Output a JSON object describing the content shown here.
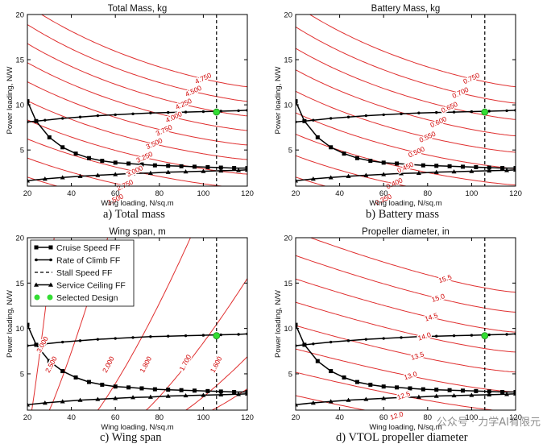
{
  "colors": {
    "contour": "#e03030",
    "selected": "#33dd33",
    "curve": "#000000"
  },
  "watermark": "公众号 · 力学AI有限元",
  "legend": {
    "items": [
      {
        "label": "Cruise Speed FF",
        "marker": "square"
      },
      {
        "label": "Rate of Climb FF",
        "marker": "dot"
      },
      {
        "label": "Stall Speed FF",
        "marker": "dashed"
      },
      {
        "label": "Service Ceiling FF",
        "marker": "triangle"
      },
      {
        "label": "Selected Design",
        "marker": "pentagon"
      }
    ]
  },
  "chart_data": [
    {
      "type": "line",
      "title": "Total Mass, kg",
      "caption": "a)   Total mass",
      "xlabel": "Wing loading, N/sq.m",
      "ylabel": "Power loading, N/W",
      "xlim": [
        20,
        120
      ],
      "ylim": [
        1,
        20
      ],
      "xticks": [
        "20",
        "40",
        "60",
        "80",
        "100",
        "120"
      ],
      "yticks": [
        "5",
        "10",
        "15",
        "20"
      ],
      "contour_type": "mass",
      "contour_labels": [
        "2.500",
        "2.750",
        "3.000",
        "3.250",
        "3.500",
        "3.750",
        "4.000",
        "4.250",
        "4.500",
        "4.750"
      ],
      "contour_levels": [
        2.5,
        2.75,
        3.0,
        3.25,
        3.5,
        3.75,
        4.0,
        4.25,
        4.5,
        4.75
      ],
      "stall_speed_x": 106,
      "selected_design": {
        "x": 106,
        "y": 9.2
      },
      "series": [
        {
          "name": "Cruise Speed FF",
          "x": [
            20,
            24,
            30,
            36,
            42,
            48,
            54,
            60,
            66,
            72,
            78,
            84,
            90,
            96,
            102,
            108,
            114,
            120
          ],
          "y": [
            10.4,
            8.2,
            6.4,
            5.3,
            4.6,
            4.1,
            3.8,
            3.6,
            3.5,
            3.4,
            3.3,
            3.25,
            3.2,
            3.15,
            3.1,
            3.05,
            3.0,
            3.0
          ]
        },
        {
          "name": "Rate of Climb FF",
          "x": [
            20,
            28,
            36,
            44,
            52,
            60,
            68,
            76,
            84,
            92,
            100,
            108,
            116,
            120
          ],
          "y": [
            8.1,
            8.3,
            8.5,
            8.65,
            8.8,
            8.9,
            9.0,
            9.1,
            9.15,
            9.2,
            9.25,
            9.3,
            9.35,
            9.4
          ]
        },
        {
          "name": "Service Ceiling FF",
          "x": [
            20,
            28,
            36,
            44,
            52,
            60,
            68,
            76,
            84,
            92,
            100,
            108,
            116,
            120
          ],
          "y": [
            1.6,
            1.8,
            1.95,
            2.1,
            2.2,
            2.3,
            2.4,
            2.45,
            2.55,
            2.6,
            2.65,
            2.7,
            2.75,
            2.8
          ]
        }
      ]
    },
    {
      "type": "line",
      "title": "Battery Mass, kg",
      "caption": "b)   Battery mass",
      "xlabel": "Wing loading, N/sq.m",
      "ylabel": "Power loading, N/W",
      "xlim": [
        20,
        120
      ],
      "ylim": [
        1,
        20
      ],
      "xticks": [
        "20",
        "40",
        "60",
        "80",
        "100",
        "120"
      ],
      "yticks": [
        "5",
        "10",
        "15",
        "20"
      ],
      "contour_type": "mass",
      "contour_labels": [
        "0.350",
        "0.400",
        "0.450",
        "0.500",
        "0.550",
        "0.600",
        "0.650",
        "0.700",
        "0.750"
      ],
      "contour_levels": [
        0.35,
        0.4,
        0.45,
        0.5,
        0.55,
        0.6,
        0.65,
        0.7,
        0.75
      ],
      "stall_speed_x": 106,
      "selected_design": {
        "x": 106,
        "y": 9.2
      },
      "series": [
        {
          "name": "Cruise Speed FF",
          "x": [
            20,
            24,
            30,
            36,
            42,
            48,
            54,
            60,
            66,
            72,
            78,
            84,
            90,
            96,
            102,
            108,
            114,
            120
          ],
          "y": [
            10.4,
            8.2,
            6.4,
            5.3,
            4.6,
            4.1,
            3.8,
            3.6,
            3.5,
            3.4,
            3.3,
            3.25,
            3.2,
            3.15,
            3.1,
            3.05,
            3.0,
            3.0
          ]
        },
        {
          "name": "Rate of Climb FF",
          "x": [
            20,
            28,
            36,
            44,
            52,
            60,
            68,
            76,
            84,
            92,
            100,
            108,
            116,
            120
          ],
          "y": [
            8.1,
            8.3,
            8.5,
            8.65,
            8.8,
            8.9,
            9.0,
            9.1,
            9.15,
            9.2,
            9.25,
            9.3,
            9.35,
            9.4
          ]
        },
        {
          "name": "Service Ceiling FF",
          "x": [
            20,
            28,
            36,
            44,
            52,
            60,
            68,
            76,
            84,
            92,
            100,
            108,
            116,
            120
          ],
          "y": [
            1.6,
            1.8,
            1.95,
            2.1,
            2.2,
            2.3,
            2.4,
            2.45,
            2.55,
            2.6,
            2.65,
            2.7,
            2.75,
            2.8
          ]
        }
      ]
    },
    {
      "type": "line",
      "title": "Wing span, m",
      "caption": "c)   Wing span",
      "xlabel": "Wing loading, N/sq.m",
      "ylabel": "Power loading, N/W",
      "xlim": [
        20,
        120
      ],
      "ylim": [
        1,
        20
      ],
      "xticks": [
        "20",
        "40",
        "60",
        "80",
        "100",
        "120"
      ],
      "yticks": [
        "5",
        "10",
        "15",
        "20"
      ],
      "contour_type": "span",
      "contour_labels": [
        "3.000",
        "2.500",
        "2.000",
        "1.800",
        "1.700",
        "1.600"
      ],
      "contour_levels": [
        3.0,
        2.5,
        2.0,
        1.8,
        1.7,
        1.6
      ],
      "stall_speed_x": 106,
      "selected_design": {
        "x": 106,
        "y": 9.2
      },
      "series": [
        {
          "name": "Cruise Speed FF",
          "x": [
            20,
            24,
            30,
            36,
            42,
            48,
            54,
            60,
            66,
            72,
            78,
            84,
            90,
            96,
            102,
            108,
            114,
            120
          ],
          "y": [
            10.4,
            8.2,
            6.4,
            5.3,
            4.6,
            4.1,
            3.8,
            3.6,
            3.5,
            3.4,
            3.3,
            3.25,
            3.2,
            3.15,
            3.1,
            3.05,
            3.0,
            3.0
          ]
        },
        {
          "name": "Rate of Climb FF",
          "x": [
            20,
            28,
            36,
            44,
            52,
            60,
            68,
            76,
            84,
            92,
            100,
            108,
            116,
            120
          ],
          "y": [
            8.1,
            8.3,
            8.5,
            8.65,
            8.8,
            8.9,
            9.0,
            9.1,
            9.15,
            9.2,
            9.25,
            9.3,
            9.35,
            9.4
          ]
        },
        {
          "name": "Service Ceiling FF",
          "x": [
            20,
            28,
            36,
            44,
            52,
            60,
            68,
            76,
            84,
            92,
            100,
            108,
            116,
            120
          ],
          "y": [
            1.6,
            1.8,
            1.95,
            2.1,
            2.2,
            2.3,
            2.4,
            2.45,
            2.55,
            2.6,
            2.65,
            2.7,
            2.75,
            2.8
          ]
        }
      ]
    },
    {
      "type": "line",
      "title": "Propeller diameter, in",
      "caption": "d)   VTOL propeller diameter",
      "xlabel": "Wing loading, N/sq.m",
      "ylabel": "Power loading, N/W",
      "xlim": [
        20,
        120
      ],
      "ylim": [
        1,
        20
      ],
      "xticks": [
        "20",
        "40",
        "60",
        "80",
        "100",
        "120"
      ],
      "yticks": [
        "5",
        "10",
        "15",
        "20"
      ],
      "contour_type": "prop",
      "contour_labels": [
        "12.0",
        "12.5",
        "13.0",
        "13.5",
        "14.0",
        "14.5",
        "15.0",
        "15.5"
      ],
      "contour_levels": [
        12.0,
        12.5,
        13.0,
        13.5,
        14.0,
        14.5,
        15.0,
        15.5
      ],
      "stall_speed_x": 106,
      "selected_design": {
        "x": 106,
        "y": 9.2
      },
      "series": [
        {
          "name": "Cruise Speed FF",
          "x": [
            20,
            24,
            30,
            36,
            42,
            48,
            54,
            60,
            66,
            72,
            78,
            84,
            90,
            96,
            102,
            108,
            114,
            120
          ],
          "y": [
            10.4,
            8.2,
            6.4,
            5.3,
            4.6,
            4.1,
            3.8,
            3.6,
            3.5,
            3.4,
            3.3,
            3.25,
            3.2,
            3.15,
            3.1,
            3.05,
            3.0,
            3.0
          ]
        },
        {
          "name": "Rate of Climb FF",
          "x": [
            20,
            28,
            36,
            44,
            52,
            60,
            68,
            76,
            84,
            92,
            100,
            108,
            116,
            120
          ],
          "y": [
            8.1,
            8.3,
            8.5,
            8.65,
            8.8,
            8.9,
            9.0,
            9.1,
            9.15,
            9.2,
            9.25,
            9.3,
            9.35,
            9.4
          ]
        },
        {
          "name": "Service Ceiling FF",
          "x": [
            20,
            28,
            36,
            44,
            52,
            60,
            68,
            76,
            84,
            92,
            100,
            108,
            116,
            120
          ],
          "y": [
            1.6,
            1.8,
            1.95,
            2.1,
            2.2,
            2.3,
            2.4,
            2.45,
            2.55,
            2.6,
            2.65,
            2.7,
            2.75,
            2.8
          ]
        }
      ]
    }
  ]
}
